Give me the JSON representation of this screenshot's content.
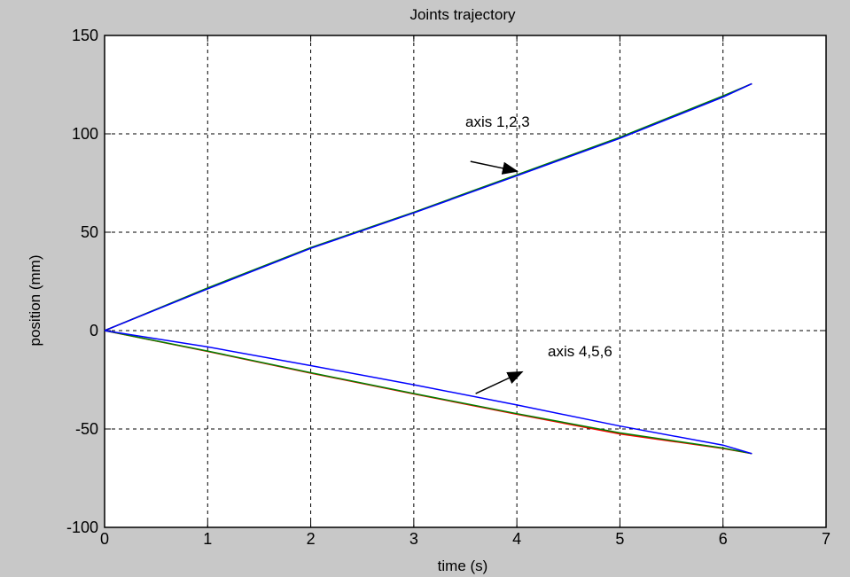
{
  "chart_data": {
    "type": "line",
    "title": "Joints trajectory",
    "xlabel": "time (s)",
    "ylabel": "position (mm)",
    "xlim": [
      0,
      7
    ],
    "ylim": [
      -100,
      150
    ],
    "xticks": [
      0,
      1,
      2,
      3,
      4,
      5,
      6,
      7
    ],
    "yticks": [
      -100,
      -50,
      0,
      50,
      100,
      150
    ],
    "grid": true,
    "x": [
      0,
      1,
      2,
      3,
      4,
      5,
      6,
      6.28
    ],
    "series": [
      {
        "color": "#ff0000",
        "values": [
          0,
          21.5,
          42,
          60,
          79,
          98,
          119,
          125.5
        ]
      },
      {
        "color": "#008000",
        "values": [
          0,
          21.7,
          42.2,
          60.2,
          79.2,
          98.3,
          119.3,
          125.5
        ]
      },
      {
        "color": "#0000ff",
        "values": [
          0,
          21.2,
          41.8,
          59.8,
          78.7,
          97.7,
          118.7,
          125.5
        ]
      },
      {
        "color": "#ff0000",
        "values": [
          0,
          -10.6,
          -21.6,
          -32.2,
          -42.5,
          -52.5,
          -59.9,
          -62.5
        ]
      },
      {
        "color": "#008000",
        "values": [
          0,
          -10.4,
          -21.4,
          -32,
          -42.2,
          -52,
          -59.7,
          -62.5
        ]
      },
      {
        "color": "#0000ff",
        "values": [
          0,
          -8.3,
          -17.8,
          -27.5,
          -37.8,
          -48.5,
          -58.2,
          -62.5
        ]
      }
    ],
    "annotations": [
      {
        "text": "axis 1,2,3",
        "x": 3.5,
        "y": 103.5
      },
      {
        "text": "axis 4,5,6",
        "x": 4.3,
        "y": -13
      }
    ],
    "arrows": [
      {
        "x1": 3.55,
        "y1": 86,
        "x2": 4.0,
        "y2": 81
      },
      {
        "x1": 3.6,
        "y1": -32,
        "x2": 4.05,
        "y2": -21
      }
    ],
    "colors": {
      "background": "#c8c8c8",
      "axes": "#ffffff"
    }
  }
}
